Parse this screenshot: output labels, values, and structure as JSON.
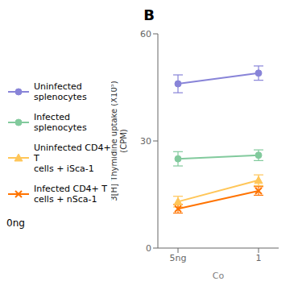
{
  "chart_data": {
    "type": "line",
    "title": "B",
    "xlabel": "Co",
    "ylabel": "3[H] Thymidine uptake (X10⁵)\n(CPM)",
    "categories": [
      "5ng",
      "1"
    ],
    "ylim": [
      0,
      60
    ],
    "yticks": [
      0,
      30,
      60
    ],
    "legend": "left",
    "annotations": [
      "0ng"
    ],
    "series": [
      {
        "name": "Uninfected\nsplenocytes",
        "color": "#8884d8",
        "marker": "circle",
        "line_style": "solid",
        "values": [
          46,
          49
        ],
        "errors": [
          2.5,
          2.0
        ]
      },
      {
        "name": "Infected\nsplenocytes",
        "color": "#82ca9d",
        "marker": "circle",
        "line_style": "solid",
        "values": [
          25,
          26
        ],
        "errors": [
          2.0,
          1.5
        ]
      },
      {
        "name": "Uninfected CD4+ T\ncells + iSca-1",
        "color": "#ffc658",
        "marker": "triangle",
        "line_style": "solid",
        "values": [
          13,
          19
        ],
        "errors": [
          1.5,
          1.5
        ]
      },
      {
        "name": "Infected CD4+ T\ncells + nSca-1",
        "color": "#ff7300",
        "marker": "x",
        "line_style": "solid",
        "values": [
          11,
          16
        ],
        "errors": [
          1.2,
          1.2
        ]
      }
    ]
  }
}
